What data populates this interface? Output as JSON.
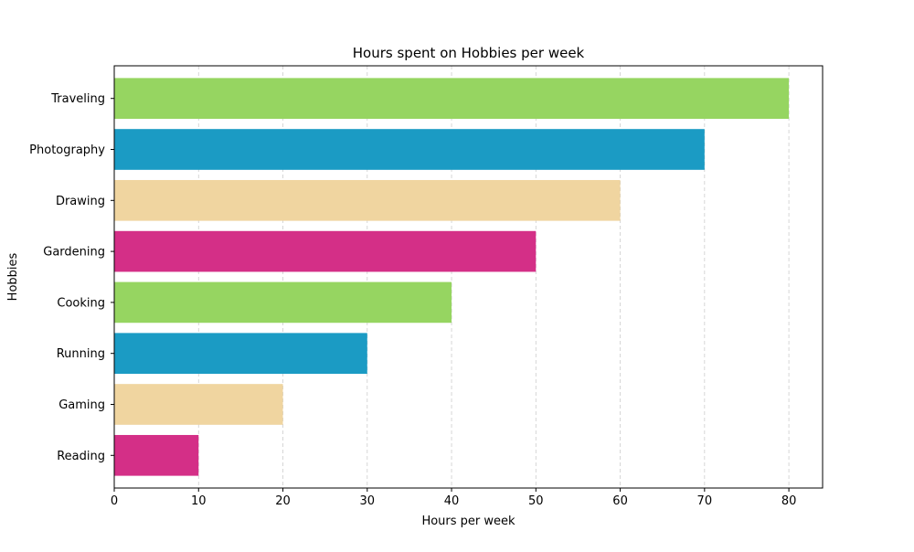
{
  "chart_data": {
    "type": "bar",
    "orientation": "horizontal",
    "title": "Hours spent on Hobbies per week",
    "xlabel": "Hours per week",
    "ylabel": "Hobbies",
    "categories": [
      "Reading",
      "Gaming",
      "Running",
      "Cooking",
      "Gardening",
      "Drawing",
      "Photography",
      "Traveling"
    ],
    "values": [
      10,
      20,
      30,
      40,
      50,
      60,
      70,
      80
    ],
    "colors": [
      "#d42f87",
      "#f0d5a0",
      "#1b9bc4",
      "#96d561",
      "#d42f87",
      "#f0d5a0",
      "#1b9bc4",
      "#96d561"
    ],
    "xlim": [
      0,
      84
    ],
    "xticks": [
      0,
      10,
      20,
      30,
      40,
      50,
      60,
      70,
      80
    ],
    "grid": {
      "x": true,
      "y": false,
      "style": "dashed",
      "color": "#cccccc"
    }
  }
}
